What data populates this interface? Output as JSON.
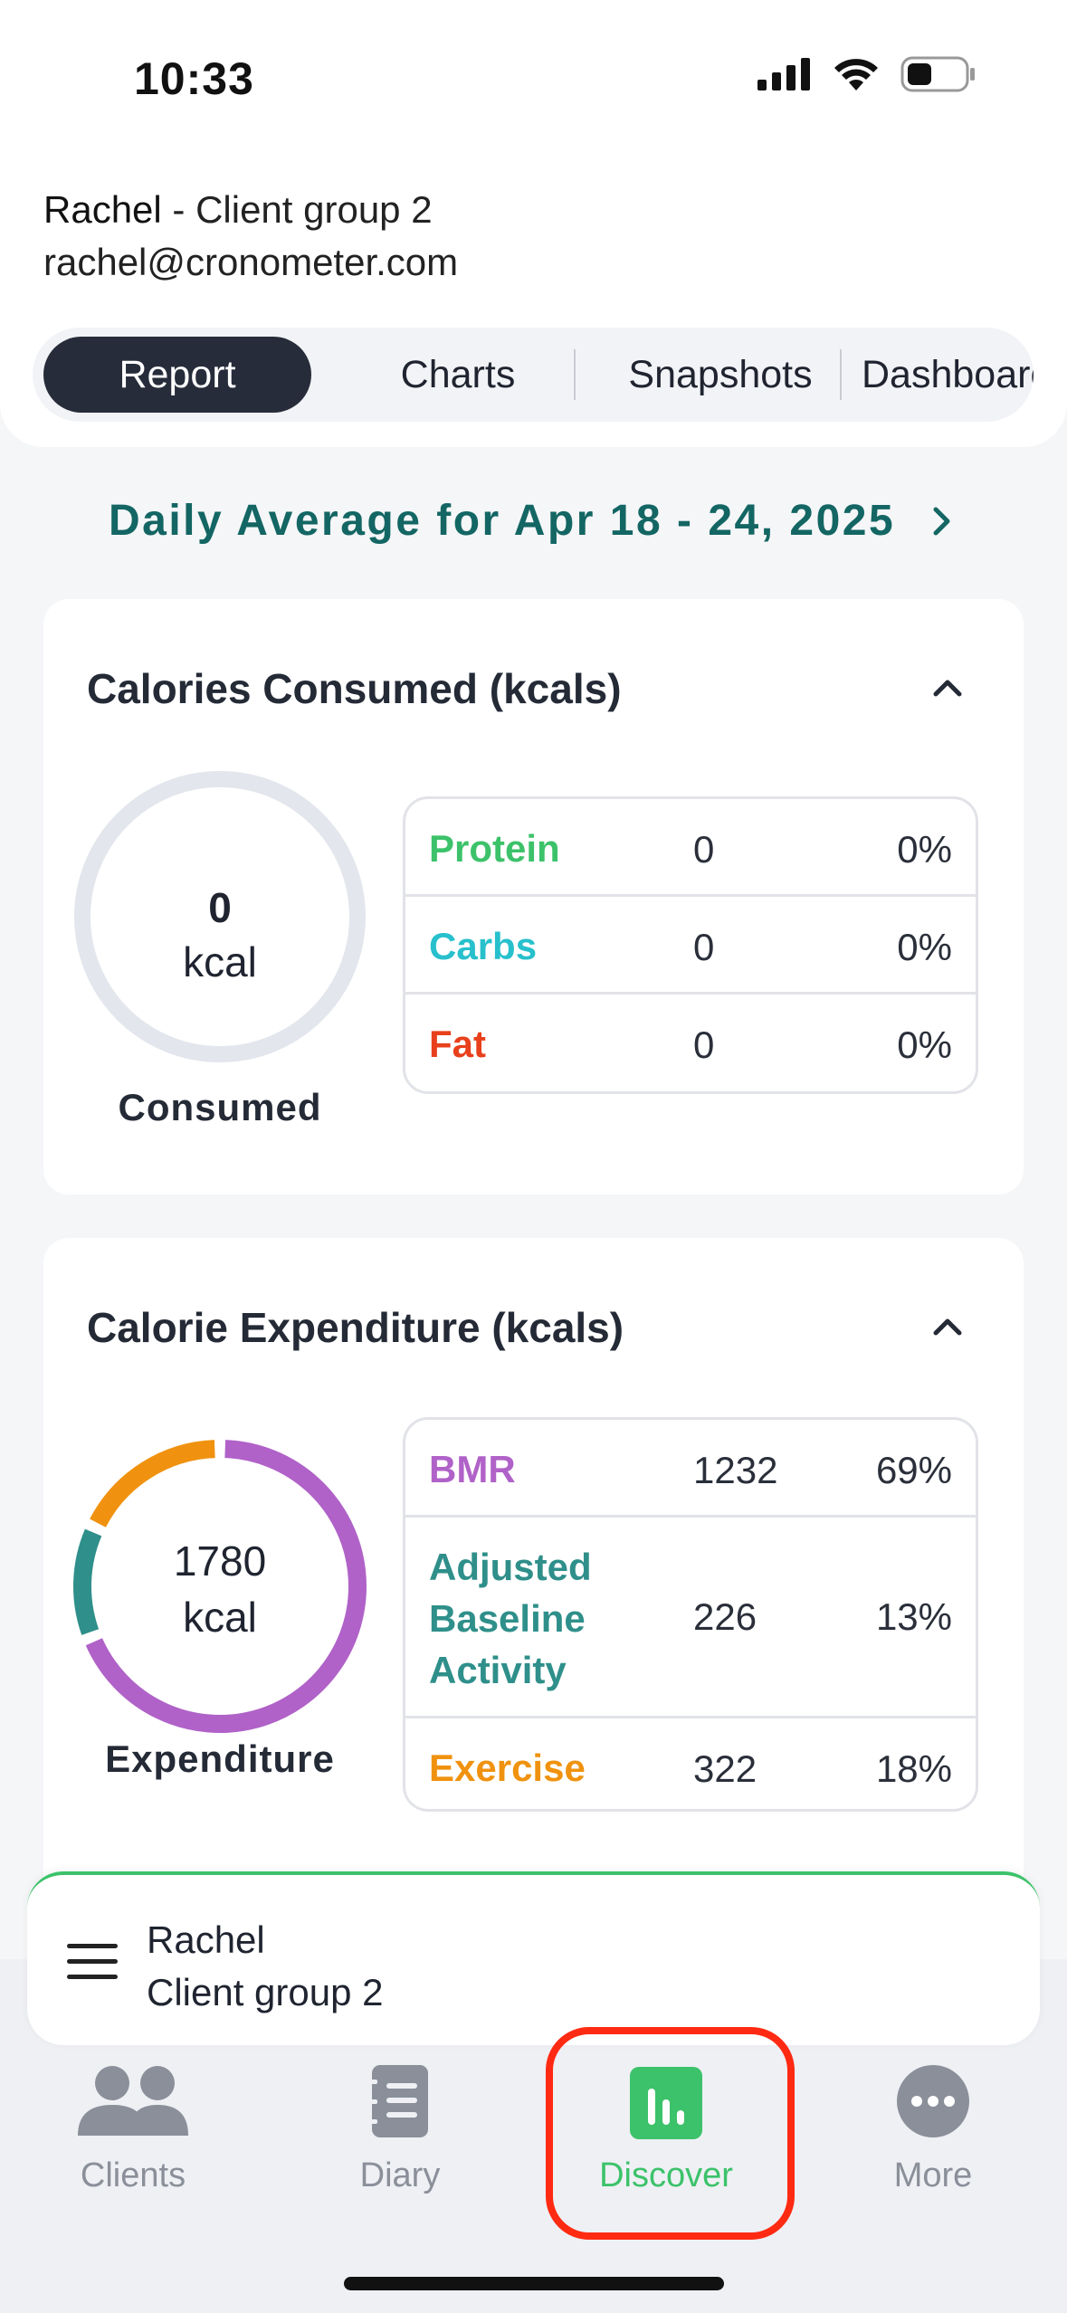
{
  "status_bar": {
    "time": "10:33"
  },
  "header": {
    "client_name": "Rachel",
    "client_group": " - Client group 2",
    "client_email": "rachel@cronometer.com"
  },
  "tabs": [
    {
      "label": "Report",
      "active": true
    },
    {
      "label": "Charts",
      "active": false
    },
    {
      "label": "Snapshots",
      "active": false
    },
    {
      "label": "Dashboard",
      "active": false
    }
  ],
  "date_heading": "Daily Average for Apr 18 - 24, 2025",
  "calories_consumed": {
    "title": "Calories Consumed (kcals)",
    "ring_value": "0",
    "ring_unit": "kcal",
    "ring_label": "Consumed",
    "rows": [
      {
        "name": "Protein",
        "value": "0",
        "pct": "0%",
        "color": "#3cc26a"
      },
      {
        "name": "Carbs",
        "value": "0",
        "pct": "0%",
        "color": "#27c0cc"
      },
      {
        "name": "Fat",
        "value": "0",
        "pct": "0%",
        "color": "#e8401c"
      }
    ]
  },
  "calorie_expenditure": {
    "title": "Calorie Expenditure (kcals)",
    "ring_value": "1780",
    "ring_unit": "kcal",
    "ring_label": "Expenditure",
    "rows": [
      {
        "name": "BMR",
        "value": "1232",
        "pct": "69%",
        "fraction": 0.69,
        "color": "#b062c8"
      },
      {
        "name": "Adjusted Baseline Activity",
        "value": "226",
        "pct": "13%",
        "fraction": 0.13,
        "color": "#2f8f8a"
      },
      {
        "name": "Exercise",
        "value": "322",
        "pct": "18%",
        "fraction": 0.18,
        "color": "#f0920f"
      }
    ]
  },
  "client_bar": {
    "name": "Rachel",
    "group": "Client group 2"
  },
  "bottom_nav": [
    {
      "label": "Clients",
      "icon": "users-icon",
      "active": false
    },
    {
      "label": "Diary",
      "icon": "notebook-icon",
      "active": false
    },
    {
      "label": "Discover",
      "icon": "bar-chart-icon",
      "active": true
    },
    {
      "label": "More",
      "icon": "more-dots-icon",
      "active": false
    }
  ],
  "colors": {
    "accent_green": "#3cc26a",
    "highlight_red": "#ff2a12",
    "teal_heading": "#136663"
  }
}
